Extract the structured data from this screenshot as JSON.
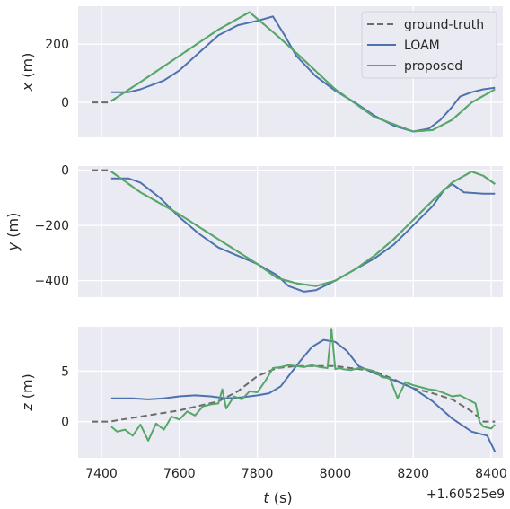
{
  "chart_data": [
    {
      "type": "line",
      "ylabel": "x (m)",
      "ylabel_var": "x",
      "ylabel_unit": " (m)",
      "ylim": [
        -120,
        330
      ],
      "yticks": [
        0,
        200
      ],
      "ytick_labels": [
        "0",
        "200"
      ],
      "xlim": [
        7340,
        8430
      ],
      "grid": true,
      "legend": {
        "placement": "top-right",
        "entries": [
          "ground-truth",
          "LOAM",
          "proposed"
        ]
      },
      "series": [
        {
          "name": "ground-truth",
          "style": "dashed",
          "color": "#6b6b6b",
          "x": [
            7375,
            7420,
            7500,
            7600,
            7700,
            7780,
            7850,
            7900,
            8000,
            8100,
            8200,
            8250,
            8300,
            8350,
            8410
          ],
          "y": [
            0,
            0,
            70,
            160,
            250,
            310,
            230,
            170,
            45,
            -50,
            -100,
            -95,
            -60,
            0,
            45
          ]
        },
        {
          "name": "LOAM",
          "style": "solid",
          "color": "#4c72b0",
          "x": [
            7425,
            7470,
            7500,
            7560,
            7600,
            7650,
            7700,
            7750,
            7800,
            7840,
            7870,
            7900,
            7950,
            8000,
            8050,
            8100,
            8150,
            8200,
            8240,
            8270,
            8300,
            8320,
            8350,
            8380,
            8410
          ],
          "y": [
            35,
            35,
            45,
            75,
            110,
            170,
            230,
            265,
            280,
            295,
            230,
            160,
            90,
            40,
            0,
            -45,
            -80,
            -100,
            -90,
            -60,
            -15,
            20,
            35,
            45,
            50
          ]
        },
        {
          "name": "proposed",
          "style": "solid",
          "color": "#55a868",
          "x": [
            7425,
            7500,
            7600,
            7700,
            7780,
            7850,
            7900,
            8000,
            8100,
            8200,
            8250,
            8300,
            8350,
            8410
          ],
          "y": [
            5,
            70,
            160,
            250,
            310,
            230,
            170,
            45,
            -50,
            -100,
            -95,
            -60,
            0,
            45
          ]
        }
      ]
    },
    {
      "type": "line",
      "ylabel": "y (m)",
      "ylabel_var": "y",
      "ylabel_unit": " (m)",
      "ylim": [
        -460,
        15
      ],
      "yticks": [
        0,
        -200,
        -400
      ],
      "ytick_labels": [
        "0",
        "−200",
        "−400"
      ],
      "xlim": [
        7340,
        8430
      ],
      "grid": true,
      "series": [
        {
          "name": "ground-truth",
          "style": "dashed",
          "color": "#6b6b6b",
          "x": [
            7375,
            7420,
            7500,
            7600,
            7700,
            7800,
            7850,
            7900,
            7950,
            8000,
            8050,
            8100,
            8150,
            8200,
            8250,
            8300,
            8350,
            8380,
            8410
          ],
          "y": [
            0,
            0,
            -80,
            -160,
            -250,
            -340,
            -390,
            -410,
            -420,
            -400,
            -360,
            -310,
            -250,
            -180,
            -110,
            -45,
            -5,
            -20,
            -50
          ]
        },
        {
          "name": "LOAM",
          "style": "solid",
          "color": "#4c72b0",
          "x": [
            7425,
            7470,
            7500,
            7550,
            7600,
            7650,
            7700,
            7750,
            7800,
            7850,
            7880,
            7920,
            7950,
            8000,
            8050,
            8100,
            8150,
            8200,
            8250,
            8280,
            8300,
            8330,
            8380,
            8410
          ],
          "y": [
            -30,
            -30,
            -45,
            -100,
            -170,
            -230,
            -280,
            -310,
            -340,
            -380,
            -420,
            -440,
            -435,
            -400,
            -360,
            -320,
            -270,
            -200,
            -130,
            -70,
            -50,
            -80,
            -85,
            -85
          ]
        },
        {
          "name": "proposed",
          "style": "solid",
          "color": "#55a868",
          "x": [
            7425,
            7500,
            7600,
            7700,
            7800,
            7850,
            7900,
            7950,
            8000,
            8050,
            8100,
            8150,
            8200,
            8250,
            8300,
            8350,
            8380,
            8410
          ],
          "y": [
            -5,
            -80,
            -160,
            -250,
            -340,
            -390,
            -410,
            -420,
            -400,
            -360,
            -310,
            -250,
            -180,
            -110,
            -45,
            -5,
            -20,
            -50
          ]
        }
      ]
    },
    {
      "type": "line",
      "ylabel": "z (m)",
      "ylabel_var": "z",
      "ylabel_unit": " (m)",
      "ylim": [
        -3.6,
        9.4
      ],
      "yticks": [
        5,
        0
      ],
      "ytick_labels": [
        "5",
        "0"
      ],
      "xlim": [
        7340,
        8430
      ],
      "xticks": [
        7400,
        7600,
        7800,
        8000,
        8200,
        8400
      ],
      "xtick_labels": [
        "7400",
        "7600",
        "7800",
        "8000",
        "8200",
        "8400"
      ],
      "xlabel": "t (s)",
      "xlabel_var": "t",
      "xlabel_unit": " (s)",
      "offset_text": "+1.60525e9",
      "grid": true,
      "series": [
        {
          "name": "ground-truth",
          "style": "dashed",
          "color": "#6b6b6b",
          "x": [
            7375,
            7420,
            7500,
            7600,
            7700,
            7750,
            7800,
            7850,
            7900,
            8000,
            8100,
            8150,
            8200,
            8250,
            8300,
            8350,
            8380,
            8410
          ],
          "y": [
            0,
            0,
            0.5,
            1.1,
            2,
            3,
            4.5,
            5.3,
            5.5,
            5.5,
            5,
            4.2,
            3.3,
            2.8,
            2.2,
            1,
            0,
            0
          ]
        },
        {
          "name": "LOAM",
          "style": "solid",
          "color": "#4c72b0",
          "x": [
            7425,
            7480,
            7520,
            7560,
            7600,
            7640,
            7680,
            7720,
            7760,
            7800,
            7830,
            7860,
            7880,
            7910,
            7940,
            7970,
            8000,
            8030,
            8060,
            8100,
            8150,
            8200,
            8250,
            8300,
            8350,
            8390,
            8410
          ],
          "y": [
            2.3,
            2.3,
            2.2,
            2.3,
            2.5,
            2.6,
            2.5,
            2.3,
            2.4,
            2.6,
            2.8,
            3.5,
            4.5,
            6,
            7.4,
            8.1,
            7.9,
            7,
            5.5,
            4.8,
            4.1,
            3.3,
            2,
            0.3,
            -1,
            -1.4,
            -3
          ]
        },
        {
          "name": "proposed",
          "style": "solid",
          "color": "#55a868",
          "x": [
            7425,
            7440,
            7460,
            7480,
            7500,
            7520,
            7540,
            7560,
            7580,
            7600,
            7620,
            7640,
            7660,
            7680,
            7700,
            7710,
            7720,
            7740,
            7760,
            7780,
            7800,
            7820,
            7840,
            7860,
            7880,
            7900,
            7920,
            7940,
            7960,
            7980,
            7990,
            8000,
            8010,
            8020,
            8040,
            8060,
            8080,
            8100,
            8120,
            8140,
            8160,
            8180,
            8200,
            8220,
            8240,
            8260,
            8280,
            8300,
            8320,
            8340,
            8360,
            8370,
            8380,
            8400,
            8410
          ],
          "y": [
            -0.5,
            -1,
            -0.8,
            -1.4,
            -0.3,
            -1.9,
            -0.2,
            -0.8,
            0.5,
            0.2,
            1,
            0.6,
            1.5,
            1.7,
            1.8,
            3.2,
            1.3,
            2.5,
            2.2,
            3,
            2.9,
            4,
            5.3,
            5.4,
            5.6,
            5.5,
            5.4,
            5.6,
            5.4,
            5.3,
            9.2,
            5.2,
            5.3,
            5.2,
            5.1,
            5.3,
            5.2,
            5,
            4.4,
            4.3,
            2.3,
            3.9,
            3.6,
            3.4,
            3.2,
            3.1,
            2.8,
            2.5,
            2.6,
            2.2,
            1.8,
            0,
            -0.5,
            -0.7,
            -0.3
          ]
        }
      ]
    }
  ]
}
